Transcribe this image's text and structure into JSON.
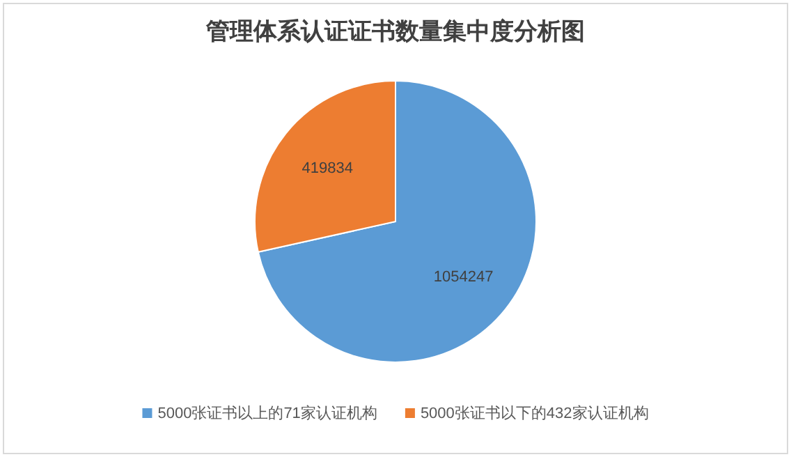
{
  "chart_data": {
    "type": "pie",
    "title": "管理体系认证证书数量集中度分析图",
    "categories": [
      "5000张证书以上的71家认证机构",
      "5000张证书以下的432家认证机构"
    ],
    "values": [
      1054247,
      419834
    ],
    "colors": [
      "#5b9bd5",
      "#ed7d31"
    ],
    "data_labels": true,
    "legend": "bottom"
  }
}
